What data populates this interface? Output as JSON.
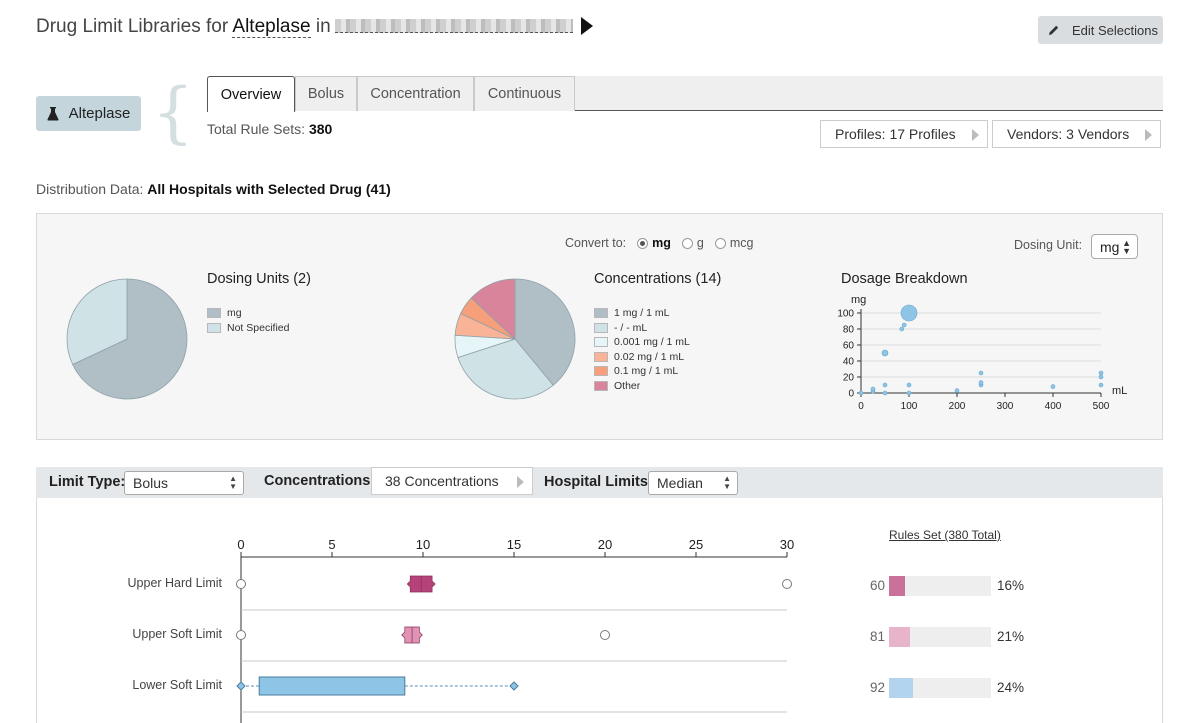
{
  "header": {
    "title_prefix": "Drug Limit Libraries for",
    "drug": "Alteplase",
    "title_in": "in",
    "edit_label": "Edit Selections"
  },
  "drug_chip": {
    "label": "Alteplase",
    "icon": "flask-icon"
  },
  "tabs": [
    {
      "label": "Overview",
      "active": true
    },
    {
      "label": "Bolus",
      "active": false
    },
    {
      "label": "Concentration",
      "active": false
    },
    {
      "label": "Continuous",
      "active": false
    }
  ],
  "summary": {
    "total_label": "Total Rule Sets:",
    "total_value": "380",
    "profiles_label": "Profiles: 17 Profiles",
    "vendors_label": "Vendors: 3 Vendors"
  },
  "distribution": {
    "label": "Distribution Data:",
    "value": "All Hospitals with Selected Drug (41)"
  },
  "convert": {
    "label": "Convert to:",
    "options": [
      {
        "label": "mg",
        "selected": true
      },
      {
        "label": "g",
        "selected": false
      },
      {
        "label": "mcg",
        "selected": false
      }
    ]
  },
  "dosing_unit": {
    "label": "Dosing Unit:",
    "value": "mg"
  },
  "chart_data": [
    {
      "type": "pie",
      "title": "Dosing Units (2)",
      "labels": [
        "mg",
        "Not Specified"
      ],
      "values": [
        68,
        32
      ],
      "colors": [
        "#b0bec6",
        "#cfe3e7"
      ]
    },
    {
      "type": "pie",
      "title": "Concentrations (14)",
      "labels": [
        "1 mg / 1 mL",
        "- / - mL",
        "0.001 mg / 1 mL",
        "0.02 mg / 1 mL",
        "0.1 mg / 1 mL",
        "Other"
      ],
      "values": [
        39,
        31,
        6,
        6,
        5,
        13
      ],
      "colors": [
        "#b0bec6",
        "#cfe3e7",
        "#e6f5f7",
        "#f9b396",
        "#f79e7b",
        "#d8849b"
      ]
    },
    {
      "type": "scatter",
      "title": "Dosage Breakdown",
      "ylabel": "mg",
      "xlabel": "mL",
      "xlim": [
        0,
        500
      ],
      "ylim": [
        0,
        100
      ],
      "xticks": [
        0,
        100,
        200,
        300,
        400,
        500
      ],
      "yticks": [
        0,
        20,
        40,
        60,
        80,
        100
      ],
      "points": [
        {
          "x": 0,
          "y": 0,
          "size": 2
        },
        {
          "x": 25,
          "y": 2,
          "size": 2
        },
        {
          "x": 25,
          "y": 5,
          "size": 2
        },
        {
          "x": 50,
          "y": 0,
          "size": 2
        },
        {
          "x": 50,
          "y": 10,
          "size": 2
        },
        {
          "x": 50,
          "y": 50,
          "size": 3
        },
        {
          "x": 85,
          "y": 80,
          "size": 2
        },
        {
          "x": 90,
          "y": 85,
          "size": 2
        },
        {
          "x": 100,
          "y": 100,
          "size": 8
        },
        {
          "x": 100,
          "y": 0,
          "size": 2
        },
        {
          "x": 100,
          "y": 10,
          "size": 2
        },
        {
          "x": 200,
          "y": 3,
          "size": 2
        },
        {
          "x": 250,
          "y": 10,
          "size": 2
        },
        {
          "x": 250,
          "y": 13,
          "size": 2
        },
        {
          "x": 250,
          "y": 25,
          "size": 2
        },
        {
          "x": 400,
          "y": 8,
          "size": 2
        },
        {
          "x": 500,
          "y": 10,
          "size": 2
        },
        {
          "x": 500,
          "y": 20,
          "size": 2
        },
        {
          "x": 500,
          "y": 25,
          "size": 2
        }
      ]
    },
    {
      "type": "box",
      "xlim": [
        0,
        30
      ],
      "xticks": [
        0,
        5,
        10,
        15,
        20,
        25,
        30
      ],
      "rows": [
        {
          "label": "Upper Hard Limit",
          "min": 0,
          "q1": 9.3,
          "median": 9.9,
          "q3": 10.5,
          "max": 30,
          "whiskers": false,
          "color": "#b5437a",
          "outliers": [
            0,
            30
          ]
        },
        {
          "label": "Upper Soft Limit",
          "min": 0,
          "q1": 9.0,
          "median": 9.4,
          "q3": 9.8,
          "max": 20,
          "whiskers": false,
          "color": "#e193b4",
          "outliers": [
            0,
            20
          ]
        },
        {
          "label": "Lower Soft Limit",
          "min": 0,
          "q1": 1,
          "median": 1,
          "q3": 9,
          "max": 15,
          "whiskers": true,
          "color": "#8ec4e6",
          "outliers": []
        }
      ]
    }
  ],
  "limit_controls": {
    "limit_type_label": "Limit Type:",
    "limit_type_value": "Bolus",
    "concentrations_label": "Concentrations:",
    "concentrations_value": "38 Concentrations",
    "hospital_limits_label": "Hospital Limits:",
    "hospital_limits_value": "Median"
  },
  "rules_set": {
    "title": "Rules Set (380 Total)",
    "rows": [
      {
        "count": "60",
        "pct_label": "16%",
        "pct": 16,
        "color": "#c9709b"
      },
      {
        "count": "81",
        "pct_label": "21%",
        "pct": 21,
        "color": "#e8b4cb"
      },
      {
        "count": "92",
        "pct_label": "24%",
        "pct": 24,
        "color": "#b2d4ee"
      }
    ]
  }
}
